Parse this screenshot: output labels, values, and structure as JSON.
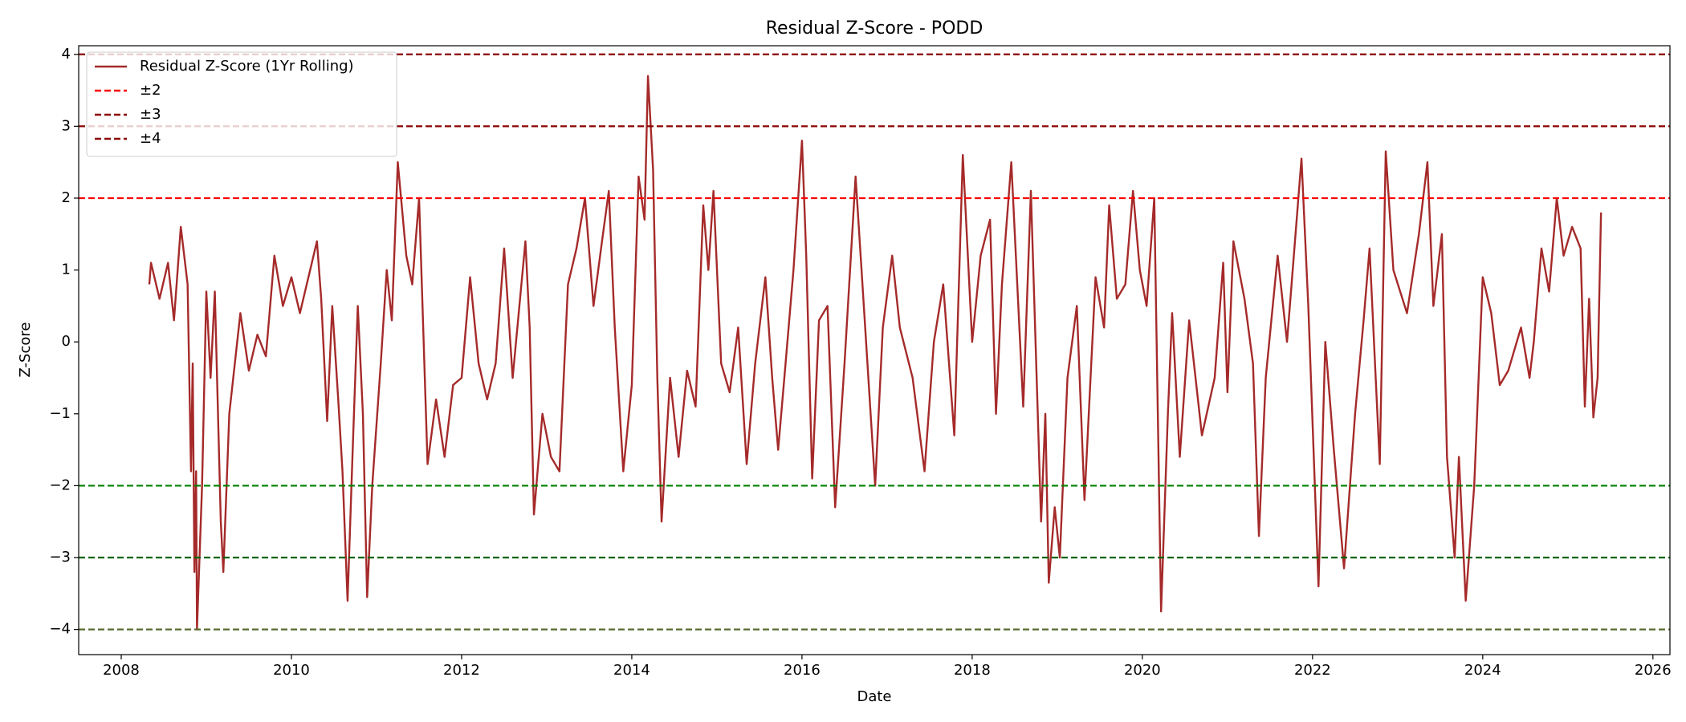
{
  "chart_data": {
    "type": "line",
    "title": "Residual Z-Score - PODD",
    "x_label": "Date",
    "y_label": "Z-Score",
    "xlim": [
      2007.5,
      2026.2
    ],
    "ylim": [
      -4.35,
      4.12
    ],
    "xticks": [
      2008,
      2010,
      2012,
      2014,
      2016,
      2018,
      2020,
      2022,
      2024,
      2026
    ],
    "yticks": [
      {
        "value": -4,
        "label": "−4"
      },
      {
        "value": -3,
        "label": "−3"
      },
      {
        "value": -2,
        "label": "−2"
      },
      {
        "value": -1,
        "label": "−1"
      },
      0,
      1,
      2,
      3,
      4
    ],
    "grid": false,
    "legend": "upper left",
    "x": [
      2008.33,
      2008.35,
      2008.45,
      2008.55,
      2008.62,
      2008.7,
      2008.78,
      2008.82,
      2008.84,
      2008.86,
      2008.88,
      2008.89,
      2008.95,
      2009.0,
      2009.05,
      2009.1,
      2009.17,
      2009.2,
      2009.27,
      2009.4,
      2009.5,
      2009.6,
      2009.7,
      2009.8,
      2009.9,
      2010.0,
      2010.1,
      2010.2,
      2010.3,
      2010.35,
      2010.42,
      2010.48,
      2010.55,
      2010.6,
      2010.66,
      2010.72,
      2010.78,
      2010.84,
      2010.89,
      2010.95,
      2011.05,
      2011.12,
      2011.18,
      2011.25,
      2011.35,
      2011.42,
      2011.5,
      2011.6,
      2011.7,
      2011.8,
      2011.9,
      2012.0,
      2012.1,
      2012.2,
      2012.3,
      2012.4,
      2012.5,
      2012.6,
      2012.75,
      2012.8,
      2012.85,
      2012.95,
      2013.05,
      2013.15,
      2013.25,
      2013.35,
      2013.45,
      2013.55,
      2013.65,
      2013.73,
      2013.8,
      2013.9,
      2014.0,
      2014.08,
      2014.15,
      2014.19,
      2014.25,
      2014.3,
      2014.35,
      2014.45,
      2014.55,
      2014.65,
      2014.75,
      2014.84,
      2014.9,
      2014.96,
      2015.05,
      2015.15,
      2015.25,
      2015.35,
      2015.45,
      2015.57,
      2015.65,
      2015.72,
      2015.8,
      2015.9,
      2016.0,
      2016.05,
      2016.12,
      2016.2,
      2016.3,
      2016.39,
      2016.5,
      2016.63,
      2016.7,
      2016.78,
      2016.86,
      2016.95,
      2017.06,
      2017.15,
      2017.3,
      2017.44,
      2017.55,
      2017.66,
      2017.79,
      2017.89,
      2018.0,
      2018.1,
      2018.21,
      2018.28,
      2018.35,
      2018.46,
      2018.6,
      2018.69,
      2018.81,
      2018.86,
      2018.9,
      2018.97,
      2019.03,
      2019.12,
      2019.23,
      2019.32,
      2019.45,
      2019.55,
      2019.61,
      2019.7,
      2019.8,
      2019.89,
      2019.97,
      2020.05,
      2020.14,
      2020.22,
      2020.3,
      2020.35,
      2020.44,
      2020.55,
      2020.7,
      2020.85,
      2020.95,
      2021.0,
      2021.07,
      2021.2,
      2021.3,
      2021.37,
      2021.45,
      2021.59,
      2021.7,
      2021.8,
      2021.87,
      2021.95,
      2022.07,
      2022.15,
      2022.25,
      2022.37,
      2022.5,
      2022.6,
      2022.67,
      2022.79,
      2022.86,
      2022.95,
      2023.11,
      2023.25,
      2023.35,
      2023.42,
      2023.52,
      2023.58,
      2023.67,
      2023.72,
      2023.8,
      2023.9,
      2024.0,
      2024.1,
      2024.2,
      2024.3,
      2024.45,
      2024.55,
      2024.6,
      2024.69,
      2024.78,
      2024.87,
      2024.95,
      2025.05,
      2025.15,
      2025.2,
      2025.25,
      2025.3,
      2025.35,
      2025.39
    ],
    "series": [
      {
        "name": "Residual Z-Score (1Yr Rolling)",
        "color": "#a52a2a",
        "values": [
          0.8,
          1.1,
          0.6,
          1.1,
          0.3,
          1.6,
          0.8,
          -1.8,
          -0.3,
          -3.2,
          -1.8,
          -4.0,
          -2.0,
          0.7,
          -0.5,
          0.7,
          -2.5,
          -3.2,
          -1.0,
          0.4,
          -0.4,
          0.1,
          -0.2,
          1.2,
          0.5,
          0.9,
          0.4,
          0.9,
          1.4,
          0.6,
          -1.1,
          0.5,
          -0.8,
          -1.8,
          -3.6,
          -1.5,
          0.5,
          -1.0,
          -3.55,
          -2.0,
          -0.3,
          1.0,
          0.3,
          2.5,
          1.2,
          0.8,
          2.0,
          -1.7,
          -0.8,
          -1.6,
          -0.6,
          -0.5,
          0.9,
          -0.3,
          -0.8,
          -0.3,
          1.3,
          -0.5,
          1.4,
          0.2,
          -2.4,
          -1.0,
          -1.6,
          -1.8,
          0.8,
          1.3,
          2.0,
          0.5,
          1.4,
          2.1,
          0.2,
          -1.8,
          -0.6,
          2.3,
          1.7,
          3.7,
          2.4,
          -0.5,
          -2.5,
          -0.5,
          -1.6,
          -0.4,
          -0.9,
          1.9,
          1.0,
          2.1,
          -0.3,
          -0.7,
          0.2,
          -1.7,
          -0.3,
          0.9,
          -0.5,
          -1.5,
          -0.4,
          1.0,
          2.8,
          1.2,
          -1.9,
          0.3,
          0.5,
          -2.3,
          -0.3,
          2.3,
          1.0,
          -0.5,
          -2.0,
          0.2,
          1.2,
          0.2,
          -0.5,
          -1.8,
          0.0,
          0.8,
          -1.3,
          2.6,
          0.0,
          1.2,
          1.7,
          -1.0,
          0.8,
          2.5,
          -0.9,
          2.1,
          -2.5,
          -1.0,
          -3.35,
          -2.3,
          -3.0,
          -0.5,
          0.5,
          -2.2,
          0.9,
          0.2,
          1.9,
          0.6,
          0.8,
          2.1,
          1.0,
          0.5,
          2.0,
          -3.75,
          -1.0,
          0.4,
          -1.6,
          0.3,
          -1.3,
          -0.5,
          1.1,
          -0.7,
          1.4,
          0.6,
          -0.3,
          -2.7,
          -0.5,
          1.2,
          0.0,
          1.5,
          2.55,
          0.5,
          -3.4,
          0.0,
          -1.5,
          -3.15,
          -1.0,
          0.3,
          1.3,
          -1.7,
          2.65,
          1.0,
          0.4,
          1.5,
          2.5,
          0.5,
          1.5,
          -1.6,
          -3.0,
          -1.6,
          -3.6,
          -2.0,
          0.9,
          0.4,
          -0.6,
          -0.4,
          0.2,
          -0.5,
          0.0,
          1.3,
          0.7,
          2.0,
          1.2,
          1.6,
          1.3,
          -0.9,
          0.6,
          -1.05,
          -0.5,
          1.8
        ]
      }
    ],
    "reference_lines": [
      {
        "name": "±2",
        "values": [
          2,
          -2
        ],
        "colors": [
          "#ff0000",
          "#008000"
        ]
      },
      {
        "name": "±3",
        "values": [
          3,
          -3
        ],
        "colors": [
          "#8b0000",
          "#006400"
        ]
      },
      {
        "name": "±4",
        "values": [
          4,
          -4
        ],
        "colors": [
          "#8b0000",
          "#556b2f"
        ]
      }
    ]
  }
}
